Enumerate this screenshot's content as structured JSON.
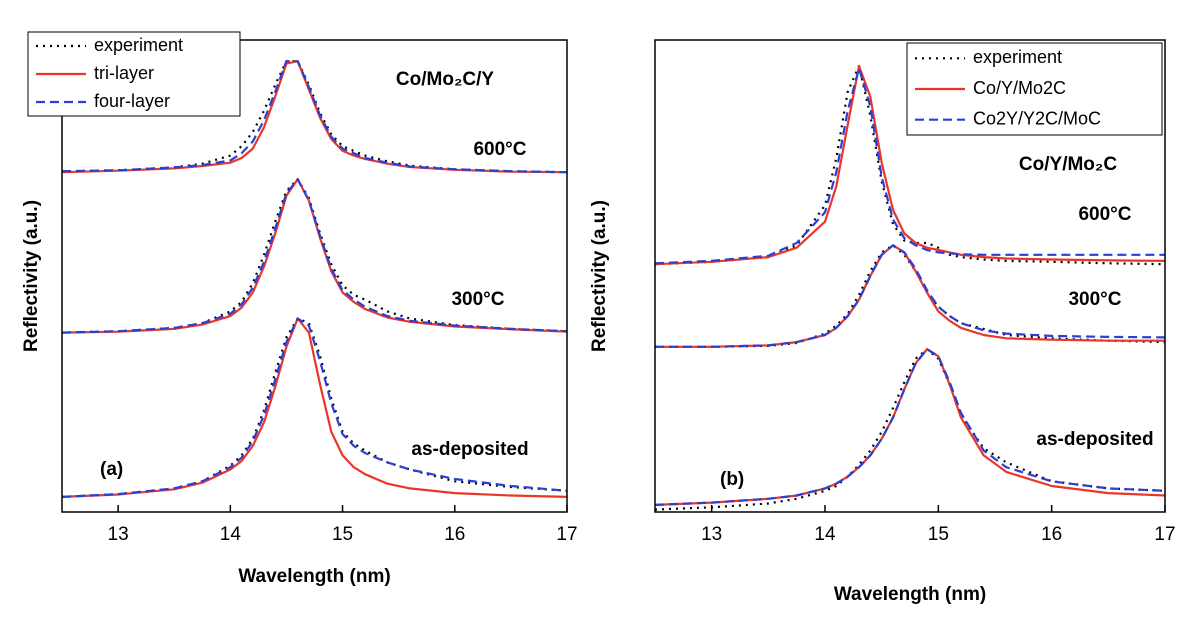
{
  "chart_data": [
    {
      "type": "line",
      "panel": "(a)",
      "annotation": "Co/Mo₂C/Y",
      "xlabel": "Wavelength (nm)",
      "ylabel": "Reflectivity (a.u.)",
      "xlim": [
        12.5,
        17
      ],
      "xticks": [
        13,
        14,
        15,
        16,
        17
      ],
      "ylim": [
        0,
        100
      ],
      "curve_labels": [
        "600°C",
        "300°C",
        "as-deposited"
      ],
      "x": [
        12.5,
        13,
        13.5,
        13.75,
        14,
        14.1,
        14.2,
        14.3,
        14.4,
        14.5,
        14.6,
        14.7,
        14.8,
        14.9,
        15,
        15.1,
        15.2,
        15.4,
        15.6,
        16,
        16.5,
        17
      ],
      "series": [
        {
          "name": "experiment",
          "color": "#000000",
          "dash": "dotted",
          "curves": [
            [
              72.2,
              72.4,
              73,
              73.8,
              75.5,
              77.5,
              80.5,
              85,
              90.5,
              95.5,
              95.5,
              90.5,
              84.5,
              80,
              77.5,
              76.5,
              75.5,
              74.3,
              73.4,
              72.6,
              72.2,
              72
            ],
            [
              38,
              38.3,
              39,
              40,
              42.5,
              44.5,
              48.5,
              54.5,
              61.5,
              68,
              70.5,
              66.5,
              59,
              52.5,
              48,
              46,
              45,
              42.5,
              41,
              39.6,
              38.8,
              38.3
            ],
            [
              3.2,
              3.8,
              5,
              6.5,
              9.8,
              12,
              15.5,
              21.5,
              29.5,
              37,
              41,
              40,
              33,
              24,
              17,
              14.5,
              13,
              10.5,
              9,
              6.5,
              5.3,
              4.5
            ]
          ]
        },
        {
          "name": "tri-layer",
          "color": "#e8372a",
          "dash": "solid",
          "curves": [
            [
              72,
              72.3,
              72.8,
              73.3,
              74,
              75,
              77,
              81.5,
              88,
              95,
              95.5,
              89.5,
              83.5,
              79,
              76.5,
              75.5,
              74.8,
              73.8,
              73.1,
              72.5,
              72.1,
              72
            ],
            [
              38,
              38.2,
              38.8,
              39.7,
              41.5,
              43.3,
              46.5,
              52,
              59,
              67,
              70.5,
              66,
              58,
              51,
              46.5,
              44.5,
              43,
              41.2,
              40.3,
              39.3,
              38.7,
              38.2
            ],
            [
              3.2,
              3.7,
              4.8,
              6.2,
              9,
              10.8,
              14,
              19,
              26.5,
              35,
              41,
              38,
              27,
              17,
              12,
              9.5,
              8,
              6,
              5,
              4,
              3.5,
              3.2
            ]
          ]
        },
        {
          "name": "four-layer",
          "color": "#2a3fd6",
          "dash": "dashed",
          "curves": [
            [
              72.2,
              72.4,
              73,
              73.5,
              74.5,
              76,
              78.5,
              83,
              89,
              95.5,
              95.5,
              90,
              84,
              79.5,
              77,
              76,
              75,
              74,
              73.2,
              72.6,
              72.2,
              72
            ],
            [
              38,
              38.3,
              39,
              40,
              42,
              44,
              47.5,
              53,
              60,
              67.5,
              70.5,
              66,
              58.5,
              51.5,
              47,
              45,
              43.5,
              41.5,
              40.5,
              39.5,
              38.8,
              38.3
            ],
            [
              3.2,
              3.8,
              5,
              6.5,
              9.5,
              11.5,
              15,
              20.5,
              28,
              36,
              41,
              39.5,
              32,
              23,
              16.5,
              14,
              12.5,
              10.5,
              9,
              7,
              5.5,
              4.5
            ]
          ]
        }
      ]
    },
    {
      "type": "line",
      "panel": "(b)",
      "annotation": "Co/Y/Mo₂C",
      "xlabel": "Wavelength (nm)",
      "ylabel": "Reflectivity (a.u.)",
      "xlim": [
        12.5,
        17
      ],
      "xticks": [
        13,
        14,
        15,
        16,
        17
      ],
      "ylim": [
        0,
        100
      ],
      "curve_labels": [
        "600°C",
        "300°C",
        "as-deposited"
      ],
      "x": [
        12.5,
        13,
        13.5,
        13.75,
        14,
        14.1,
        14.2,
        14.3,
        14.4,
        14.5,
        14.6,
        14.7,
        14.8,
        14.9,
        15,
        15.1,
        15.2,
        15.4,
        15.6,
        16,
        16.5,
        17
      ],
      "series": [
        {
          "name": "experiment",
          "color": "#000000",
          "dash": "dotted",
          "curves": [
            [
              52.5,
              53,
              54,
              56.5,
              65,
              75,
              89,
              94.5,
              84,
              70,
              61,
              57.5,
              57,
              57,
              56,
              54.5,
              54,
              53.5,
              53.2,
              53,
              52.7,
              52.5
            ],
            [
              35,
              35,
              35.2,
              35.8,
              37.8,
              39.5,
              42,
              46,
              51,
              55,
              56.5,
              54.5,
              51,
              46.5,
              43.5,
              41.5,
              40,
              38.8,
              37.5,
              36.8,
              36.3,
              36
            ],
            [
              0.5,
              1,
              1.8,
              2.8,
              4.5,
              5.5,
              7.5,
              10,
              13,
              17,
              22,
              27.5,
              32.5,
              34.5,
              32.5,
              27,
              20.5,
              13.5,
              10.5,
              6.5,
              5,
              4.5
            ]
          ]
        },
        {
          "name": "Co/Y/Mo2C",
          "color": "#e8372a",
          "dash": "solid",
          "curves": [
            [
              52.5,
              53,
              54,
              56,
              61.5,
              69,
              82,
              94.5,
              88,
              74,
              64,
              59,
              57,
              56,
              55.5,
              55,
              54.5,
              54,
              53.7,
              53.5,
              53.3,
              53.2
            ],
            [
              35,
              35,
              35.3,
              36,
              37.5,
              39,
              41.5,
              45,
              50,
              54.5,
              56.5,
              55,
              51,
              46.5,
              42.5,
              40.5,
              39,
              37.5,
              36.8,
              36.5,
              36.3,
              36.3
            ],
            [
              1.5,
              2,
              2.8,
              3.5,
              5,
              6,
              7.5,
              9.5,
              12,
              15.5,
              20,
              26,
              31.5,
              34.5,
              33,
              27,
              20,
              12,
              8.5,
              5.5,
              4,
              3.5
            ]
          ]
        },
        {
          "name": "Co2Y/Y2C/MoC",
          "color": "#2a3fd6",
          "dash": "dashed",
          "curves": [
            [
              52.7,
              53.2,
              54.3,
              57,
              63.5,
              72,
              85,
              94,
              86,
              71,
              62,
              58,
              56.5,
              55.5,
              55,
              54.8,
              54.6,
              54.5,
              54.5,
              54.5,
              54.5,
              54.5
            ],
            [
              35,
              35,
              35.3,
              36,
              37.5,
              39,
              41.5,
              45,
              50,
              54.5,
              56.5,
              55,
              51.5,
              47,
              43.5,
              41.5,
              40,
              38.5,
              37.8,
              37.3,
              37.1,
              37
            ],
            [
              1.5,
              2,
              2.8,
              3.5,
              5,
              6,
              7.5,
              9.5,
              12,
              15.5,
              20,
              26,
              31.5,
              34.5,
              33,
              27.5,
              21,
              13,
              9.5,
              6.5,
              5,
              4.5
            ]
          ]
        }
      ]
    }
  ]
}
